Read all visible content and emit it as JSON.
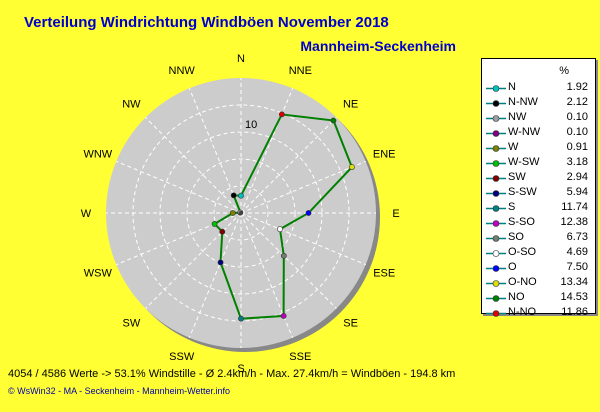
{
  "title": "Verteilung Windrichtung Windböen  November 2018",
  "station": "Mannheim-Seckenheim",
  "footer": {
    "stats": "4054 / 4586 Werte   -> 53.1% Windstille   -   Ø 2.4km/h  -  Max. 27.4km/h = Windböen   -   194.8 km",
    "credits": "© WsWin32  -  MA - Seckenheim  -  Mannheim-Wetter.info"
  },
  "legend": {
    "unit": "%"
  },
  "chart_data": {
    "type": "radar",
    "title": "Verteilung Windrichtung Windböen  November 2018",
    "radial_axis": {
      "max": 15,
      "gridline_label": "10"
    },
    "directions": [
      "N",
      "NNE",
      "NE",
      "ENE",
      "E",
      "ESE",
      "SE",
      "SSE",
      "S",
      "SSW",
      "SW",
      "WSW",
      "W",
      "WNW",
      "NW",
      "NNW"
    ],
    "series": [
      {
        "color": "#008000",
        "values": [
          1.92,
          11.86,
          14.53,
          13.34,
          7.5,
          4.69,
          6.73,
          12.38,
          11.74,
          5.94,
          2.94,
          3.18,
          0.91,
          0.1,
          0.1,
          2.12
        ]
      }
    ],
    "legend": [
      {
        "label": "N",
        "value": "1.92",
        "color": "#00c0c0"
      },
      {
        "label": "N-NW",
        "value": "2.12",
        "color": "#000000"
      },
      {
        "label": "NW",
        "value": "0.10",
        "color": "#a0a0a0"
      },
      {
        "label": "W-NW",
        "value": "0.10",
        "color": "#800080"
      },
      {
        "label": "W",
        "value": "0.91",
        "color": "#808000"
      },
      {
        "label": "W-SW",
        "value": "3.18",
        "color": "#00c000"
      },
      {
        "label": "SW",
        "value": "2.94",
        "color": "#800000"
      },
      {
        "label": "S-SW",
        "value": "5.94",
        "color": "#000080"
      },
      {
        "label": "S",
        "value": "11.74",
        "color": "#008080"
      },
      {
        "label": "S-SO",
        "value": "12.38",
        "color": "#c000c0"
      },
      {
        "label": "SO",
        "value": "6.73",
        "color": "#708070"
      },
      {
        "label": "O-SO",
        "value": "4.69",
        "color": "#ffffff"
      },
      {
        "label": "O",
        "value": "7.50",
        "color": "#0000ff"
      },
      {
        "label": "O-NO",
        "value": "13.34",
        "color": "#e0e000"
      },
      {
        "label": "NO",
        "value": "14.53",
        "color": "#008000"
      },
      {
        "label": "N-NO",
        "value": "11.86",
        "color": "#e00000"
      }
    ]
  }
}
